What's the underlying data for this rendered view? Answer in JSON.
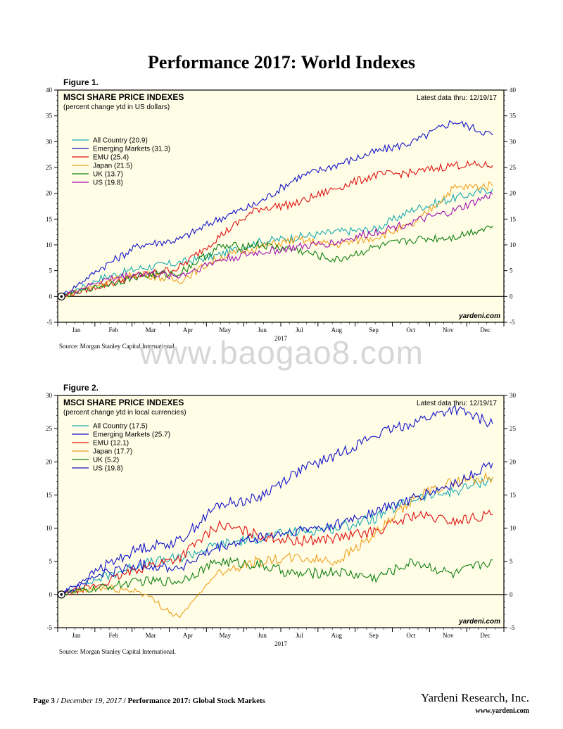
{
  "page": {
    "title": "Performance 2017: World Indexes",
    "watermark": "www.baogao8.com",
    "footer": {
      "page_label": "Page 3 /",
      "date": "December 19, 2017",
      "separator": "/",
      "report_title": "Performance 2017: Global Stock Markets",
      "company": "Yardeni Research, Inc.",
      "url": "www.yardeni.com"
    }
  },
  "colors": {
    "plot_background": "#fffde6",
    "teal": "#1aaab0",
    "blue": "#1414c8",
    "red": "#e01010",
    "orange": "#f0a020",
    "green": "#108010",
    "purple": "#a010b0"
  },
  "figures": [
    {
      "label": "Figure 1.",
      "source": "Source: Morgan Stanley Capital International.",
      "brand": "yardeni.com"
    },
    {
      "label": "Figure 2.",
      "source": "Source: Morgan Stanley Capital International.",
      "brand": "yardeni.com"
    }
  ],
  "chart_data": [
    {
      "type": "line",
      "title": "MSCI SHARE PRICE INDEXES",
      "subtitle": "(percent change ytd in US dollars)",
      "note": "Latest data thru: 12/19/17",
      "xlabel": "2017",
      "x_ticks": [
        "Jan",
        "Feb",
        "Mar",
        "Apr",
        "May",
        "Jun",
        "Jul",
        "Aug",
        "Sep",
        "Oct",
        "Nov",
        "Dec"
      ],
      "ylim": [
        -5,
        40
      ],
      "y_ticks": [
        -5,
        0,
        5,
        10,
        15,
        20,
        25,
        30,
        35,
        40
      ],
      "legend_position": "top-left",
      "series": [
        {
          "name": "All Country (20.9)",
          "color": "#1aaab0",
          "values": [
            0,
            3.5,
            5.5,
            6.5,
            8,
            10.5,
            11.5,
            12.5,
            13,
            17,
            19,
            20.9
          ]
        },
        {
          "name": "Emerging Markets (31.3)",
          "color": "#1414c8",
          "values": [
            0,
            5.5,
            10,
            11,
            15,
            18,
            23,
            25.5,
            28,
            30,
            34,
            31.3
          ]
        },
        {
          "name": "EMU (25.4)",
          "color": "#e01010",
          "values": [
            0,
            2,
            4,
            5.5,
            11.5,
            17,
            18,
            21,
            23.5,
            24,
            25.5,
            25.4
          ]
        },
        {
          "name": "Japan (21.5)",
          "color": "#f0a020",
          "values": [
            0,
            2.5,
            4.5,
            3,
            7.5,
            9.5,
            11,
            10,
            11.5,
            14,
            21,
            21.5
          ]
        },
        {
          "name": "UK (13.7)",
          "color": "#108010",
          "values": [
            0,
            2,
            4,
            4.5,
            9.5,
            10,
            9,
            7,
            9.5,
            11,
            11.5,
            13.7
          ]
        },
        {
          "name": "US (19.8)",
          "color": "#a010b0",
          "values": [
            0,
            3,
            4.5,
            4,
            7,
            8.5,
            9.5,
            10.5,
            12.5,
            14.5,
            16.5,
            19.8
          ]
        }
      ]
    },
    {
      "type": "line",
      "title": "MSCI SHARE PRICE INDEXES",
      "subtitle": "(percent change ytd in local currencies)",
      "note": "Latest data thru: 12/19/17",
      "xlabel": "2017",
      "x_ticks": [
        "Jan",
        "Feb",
        "Mar",
        "Apr",
        "May",
        "Jun",
        "Jul",
        "Aug",
        "Sep",
        "Oct",
        "Nov",
        "Dec"
      ],
      "ylim": [
        -5,
        30
      ],
      "y_ticks": [
        -5,
        0,
        5,
        10,
        15,
        20,
        25,
        30
      ],
      "legend_position": "top-left",
      "series": [
        {
          "name": "All Country (17.5)",
          "color": "#1aaab0",
          "values": [
            0,
            2.5,
            4.5,
            5.5,
            7.5,
            8.5,
            9.5,
            10,
            11.5,
            14.5,
            15.5,
            17.5
          ]
        },
        {
          "name": "Emerging Markets (25.7)",
          "color": "#1414c8",
          "values": [
            0,
            4,
            7,
            8,
            13.5,
            14.5,
            18.5,
            21,
            24,
            26,
            28,
            25.7
          ]
        },
        {
          "name": "EMU (12.1)",
          "color": "#e01010",
          "values": [
            0,
            1.5,
            4,
            5.5,
            10.5,
            9,
            8,
            8.5,
            9.5,
            12,
            11,
            12.1
          ]
        },
        {
          "name": "Japan (17.7)",
          "color": "#f0a020",
          "values": [
            0,
            1,
            0.5,
            -3.5,
            3.5,
            5,
            5.5,
            5,
            9,
            14.5,
            17,
            17.7
          ]
        },
        {
          "name": "UK (5.2)",
          "color": "#108010",
          "values": [
            0,
            1,
            2,
            2,
            5,
            4.5,
            3,
            3.5,
            2.5,
            5,
            3,
            5.2
          ]
        },
        {
          "name": "US (19.8)",
          "color": "#1414c8",
          "values": [
            0,
            3,
            4.5,
            4,
            7,
            8.5,
            9.5,
            10.5,
            12.5,
            14.5,
            16.5,
            19.8
          ]
        }
      ]
    }
  ]
}
